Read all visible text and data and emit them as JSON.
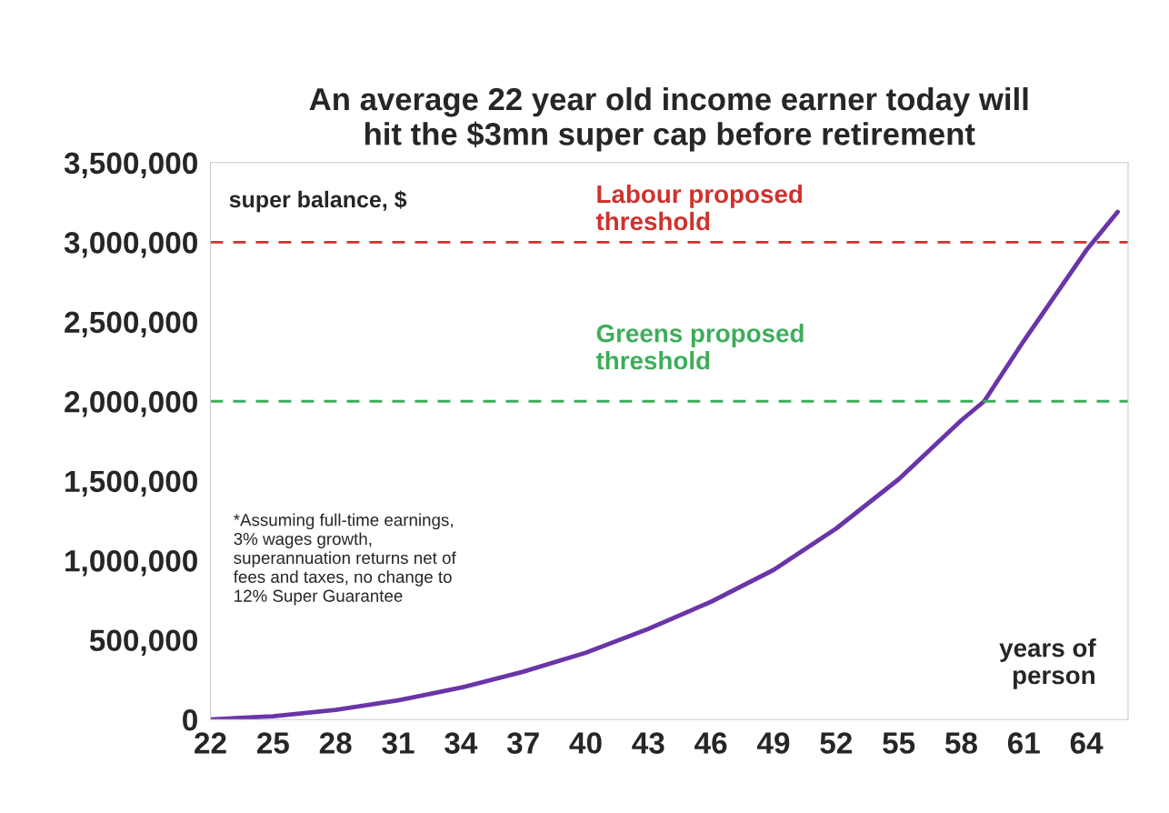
{
  "chart_data": {
    "type": "line",
    "title": "An average 22 year old income earner today will\nhit the $3mn super cap before retirement",
    "ylabel": "super balance, $",
    "xlabel": "years of\nperson",
    "x": [
      22,
      25,
      28,
      31,
      34,
      37,
      40,
      43,
      46,
      49,
      52,
      55,
      58,
      59.1,
      61,
      64,
      65.5
    ],
    "series": [
      {
        "color": "#6a35a8",
        "values": [
          0,
          20000,
          60000,
          120000,
          200000,
          300000,
          420000,
          570000,
          740000,
          940000,
          1200000,
          1510000,
          1880000,
          2000000,
          2380000,
          2950000,
          3190000
        ]
      }
    ],
    "xlim": [
      22,
      66
    ],
    "xticks": [
      22,
      25,
      28,
      31,
      34,
      37,
      40,
      43,
      46,
      49,
      52,
      55,
      58,
      61,
      64
    ],
    "ylim": [
      0,
      3500000
    ],
    "yticks": [
      0,
      {
        "value": 500000,
        "label": "500,000"
      },
      {
        "value": 1000000,
        "label": "1,000,000"
      },
      {
        "value": 1500000,
        "label": "1,500,000"
      },
      {
        "value": 2000000,
        "label": "2,000,000"
      },
      {
        "value": 2500000,
        "label": "2,500,000"
      },
      {
        "value": 3000000,
        "label": "3,000,000"
      },
      {
        "value": 3500000,
        "label": "3,500,000"
      }
    ],
    "ref_lines": [
      {
        "axis": "y",
        "value": 3000000,
        "label": "Labour proposed\nthreshold",
        "color": "#d0312d",
        "line_style": "dashed"
      },
      {
        "axis": "y",
        "value": 2000000,
        "label": "Greens proposed\nthreshold",
        "color": "#3cae5a",
        "line_style": "dashed"
      }
    ],
    "annotations": [
      "*Assuming full-time earnings,\n3% wages growth,\nsuperannuation returns net of\nfees and taxes, no change to\n12% Super Guarantee"
    ],
    "grid": false,
    "legend": false,
    "marker": "none",
    "line_style": "solid"
  }
}
